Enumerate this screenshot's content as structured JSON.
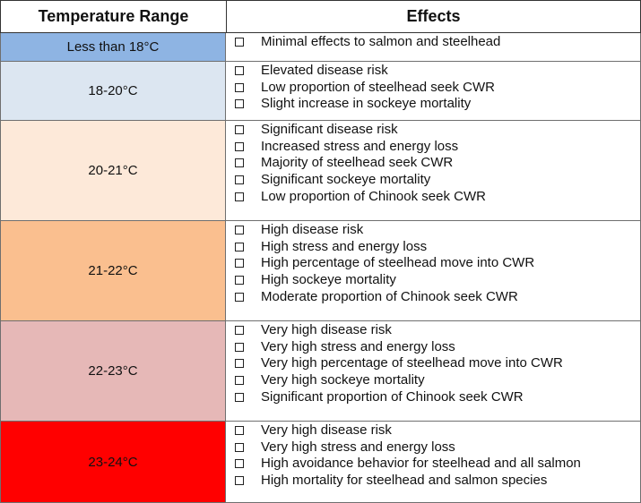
{
  "header": {
    "temperature_range": "Temperature Range",
    "effects": "Effects"
  },
  "rows": [
    {
      "range": "Less than 18°C",
      "color": "#8eb4e3",
      "effects": [
        "Minimal effects to salmon and steelhead"
      ]
    },
    {
      "range": "18-20°C",
      "color": "#dce6f1",
      "effects": [
        "Elevated disease risk",
        "Low proportion of steelhead seek CWR",
        "Slight increase in sockeye mortality"
      ]
    },
    {
      "range": "20-21°C",
      "color": "#fde9d9",
      "effects": [
        "Significant disease risk",
        "Increased stress and energy loss",
        "Majority of steelhead seek CWR",
        "Significant sockeye mortality",
        "Low proportion of Chinook seek CWR"
      ]
    },
    {
      "range": "21-22°C",
      "color": "#fabf8f",
      "effects": [
        "High disease risk",
        "High stress and energy loss",
        "High percentage of steelhead move into CWR",
        "High sockeye mortality",
        "Moderate proportion of Chinook seek CWR"
      ]
    },
    {
      "range": "22-23°C",
      "color": "#e6b8b7",
      "effects": [
        "Very high disease risk",
        "Very high stress and energy loss",
        "Very high percentage of steelhead move into CWR",
        "Very high sockeye mortality",
        "Significant proportion of Chinook seek CWR"
      ]
    },
    {
      "range": "23-24°C",
      "color": "#ff0000",
      "effects": [
        "Very high disease risk",
        "Very high stress and energy loss",
        "High avoidance behavior for steelhead and all salmon",
        "High mortality for steelhead and salmon species"
      ]
    }
  ]
}
